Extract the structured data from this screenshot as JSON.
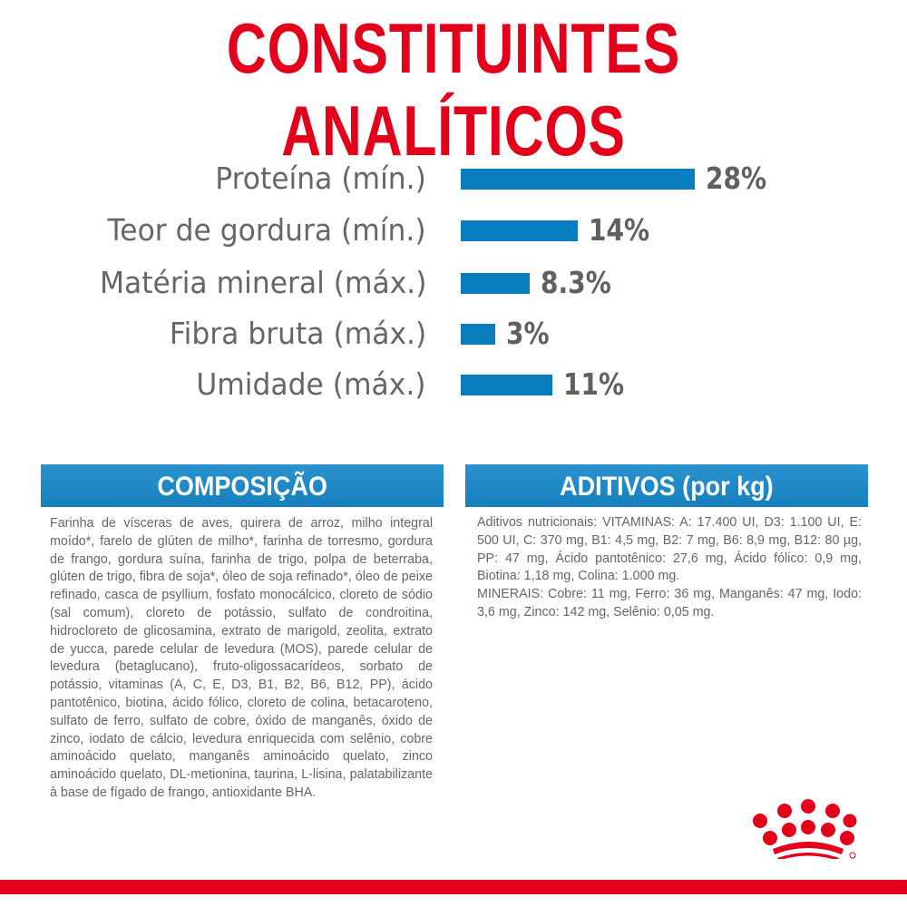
{
  "title": "CONSTITUINTES ANALÍTICOS",
  "chart_data": {
    "type": "bar",
    "orientation": "horizontal",
    "categories": [
      "Proteína (mín.)",
      "Teor de gordura (mín.)",
      "Matéria mineral (máx.)",
      "Fibra bruta  (máx.)",
      "Umidade (máx.)"
    ],
    "values": [
      28,
      14,
      8.3,
      3,
      11
    ],
    "value_labels": [
      "28%",
      "14%",
      "8.3%",
      "3%",
      "11%"
    ],
    "bar_color": "#0a7dbf",
    "grid": false
  },
  "composicao": {
    "heading": "COMPOSIÇÃO",
    "text": "Farinha de vísceras de aves, quirera de arroz, milho integral moído*, farelo de glúten de milho*, farinha de torresmo, gordura de frango, gordura suína, farinha de trigo, polpa de beterraba, glúten de trigo, fibra de soja*, óleo de soja refinado*, óleo de peixe refinado, casca de psyllium, fosfato monocálcico, cloreto de sódio (sal comum), cloreto de potássio, sulfato de condroitina, hidrocloreto de glicosamina, extrato de marigold, zeolita, extrato de yucca, parede celular de levedura (MOS), parede celular de levedura (betaglucano), fruto-oligossacarídeos, sorbato de potássio, vitaminas (A, C, E, D3, B1, B2, B6, B12, PP), ácido pantotênico, biotina, ácido fólico, cloreto de colina, betacaroteno, sulfato de ferro, sulfato de cobre, óxido de manganês, óxido de zinco, iodato de cálcio, levedura enriquecida com selênio, cobre aminoácido quelato, manganês aminoácido quelato, zinco aminoácido quelato, DL-metionina, taurina, L-lisina, palatabilizante à base de fígado de frango, antioxidante BHA."
  },
  "aditivos": {
    "heading": "ADITIVOS (por kg)",
    "text": "Aditivos nutricionais: VITAMINAS: A: 17.400 UI, D3: 1.100 UI, E: 500 UI, C: 370 mg, B1: 4,5 mg, B2: 7 mg, B6: 8,9 mg, B12: 80 µg, PP: 47 mg, Ácido pantotênico: 27,6 mg, Ácido fólico: 0,9 mg, Biotina: 1,18 mg, Colina: 1.000 mg.",
    "text2": "MINERAIS: Cobre: 11 mg, Ferro: 36 mg, Manganês: 47 mg, Iodo: 3,6 mg, Zinco: 142 mg, Selênio: 0,05 mg."
  },
  "colors": {
    "brand_red": "#e3001b",
    "accent_blue": "#1a88c6"
  },
  "logo": {
    "icon": "royal-canin-crown-logo"
  }
}
